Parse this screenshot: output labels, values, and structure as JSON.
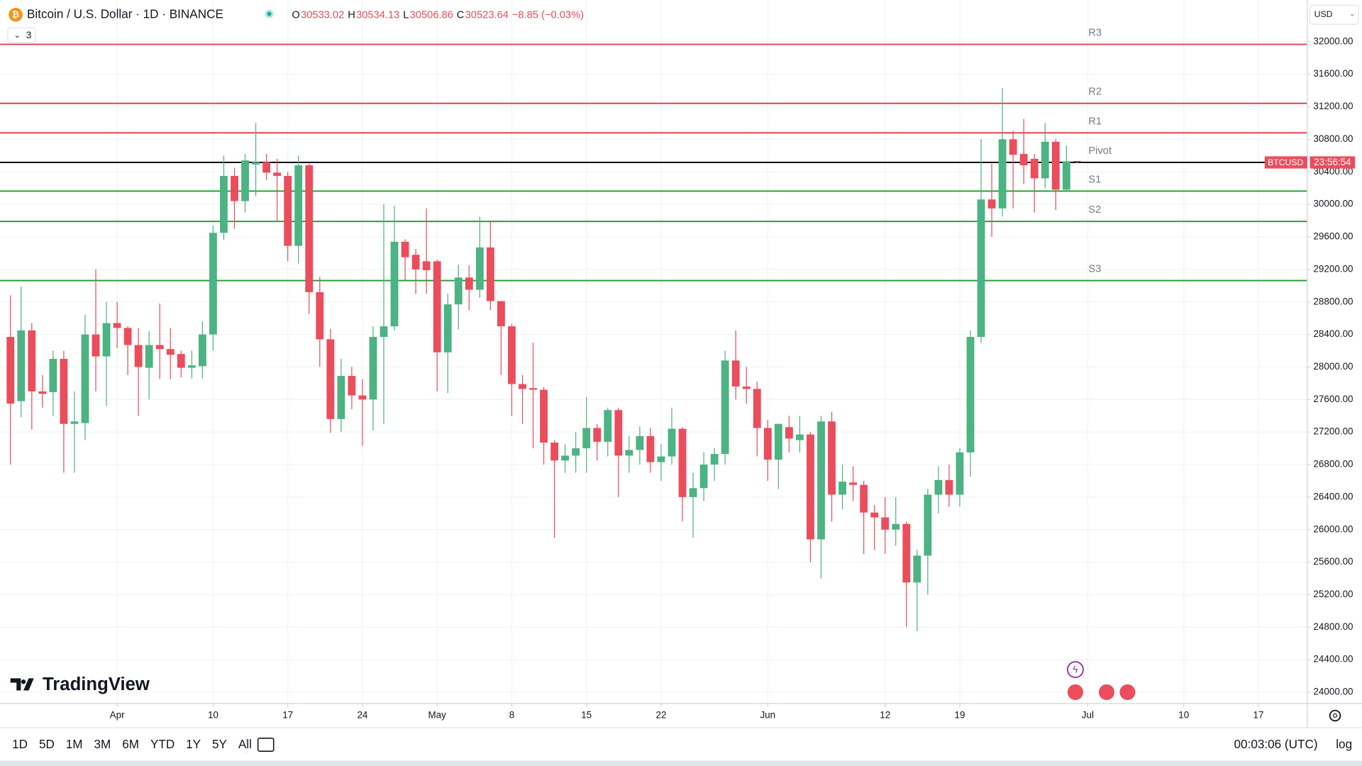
{
  "chart_data": {
    "type": "candlestick",
    "symbol": "Bitcoin / U.S. Dollar · 1D · BINANCE",
    "ohlc_letters": [
      "O",
      "H",
      "L",
      "C"
    ],
    "change": "−8.85 (−0.03%)",
    "indicator_count": "3",
    "currency": "USD",
    "ticker_tag": "BTCUSD",
    "countdown": "23:56:54",
    "logo": "TradingView",
    "timeframes": [
      "1D",
      "5D",
      "1M",
      "3M",
      "6M",
      "YTD",
      "1Y",
      "5Y",
      "All"
    ],
    "clock": "00:03:06 (UTC)",
    "scale_mode": "log",
    "up_color": "#4cb383",
    "down_color": "#eb4d5c",
    "open": [
      28370,
      27580,
      28450,
      27700,
      27690,
      28100,
      27300,
      27310,
      28400,
      28130,
      28540,
      28480,
      28270,
      27990,
      28270,
      28220,
      28160,
      27990,
      28010,
      28400,
      29650,
      30350,
      30040,
      30490,
      30520,
      30390,
      30350,
      29490,
      30480,
      28920,
      28340,
      27360,
      27890,
      27650,
      27600,
      28370,
      28500,
      29540,
      29380,
      29300,
      29300,
      28180,
      28770,
      29100,
      28950,
      29470,
      28810,
      28500,
      27790,
      27740,
      27720,
      27070,
      26850,
      26910,
      27000,
      27250,
      27080,
      27470,
      26910,
      26980,
      27150,
      26830,
      26900,
      27240,
      26400,
      26510,
      26800,
      26930,
      28080,
      27760,
      27730,
      27250,
      26860,
      27260,
      27100,
      27170,
      25880,
      27330,
      26430,
      26580,
      26550,
      26210,
      26150,
      26000,
      26070,
      25350,
      25680,
      26430,
      26610,
      26430,
      26950,
      28370,
      30060,
      29950,
      30800,
      30620,
      30560,
      30320,
      30770,
      30180,
      30533.02
    ],
    "high": [
      28880,
      28990,
      28540,
      27900,
      28200,
      28200,
      27700,
      28640,
      29200,
      28800,
      28800,
      28500,
      28480,
      28440,
      28780,
      28480,
      28200,
      28200,
      28560,
      29740,
      30600,
      30450,
      30620,
      31000,
      30620,
      30560,
      30400,
      30600,
      30500,
      29110,
      28470,
      28100,
      28000,
      27850,
      28500,
      30000,
      29980,
      29570,
      29450,
      29950,
      29320,
      28900,
      29260,
      29250,
      29850,
      29800,
      28810,
      28530,
      27900,
      28300,
      27750,
      27100,
      27050,
      27200,
      27630,
      27300,
      27500,
      27500,
      27150,
      27270,
      27250,
      27050,
      27500,
      27260,
      26700,
      26950,
      27000,
      28200,
      28450,
      28000,
      27820,
      27350,
      27300,
      27400,
      27400,
      27200,
      27400,
      27450,
      26800,
      26780,
      26600,
      26300,
      26400,
      26400,
      26100,
      25750,
      26500,
      26780,
      26800,
      27000,
      28450,
      30800,
      30500,
      31430,
      30900,
      31050,
      30620,
      31000,
      30800,
      30720,
      30534.13
    ],
    "low": [
      26800,
      27380,
      27230,
      27500,
      27400,
      26700,
      26700,
      27100,
      27700,
      27520,
      28230,
      27900,
      27400,
      27600,
      27850,
      27850,
      27870,
      27860,
      27860,
      28200,
      29560,
      29700,
      29900,
      30100,
      30300,
      29800,
      29300,
      29270,
      28650,
      28000,
      27190,
      27200,
      27480,
      27030,
      27220,
      27300,
      28450,
      29070,
      28900,
      28900,
      27700,
      27680,
      28460,
      28700,
      28850,
      28700,
      27900,
      27400,
      27300,
      27000,
      26800,
      25900,
      26700,
      26700,
      26700,
      26850,
      26900,
      26400,
      26700,
      26800,
      26700,
      26600,
      26800,
      26100,
      25900,
      26350,
      26600,
      26800,
      27600,
      27550,
      26900,
      26600,
      26500,
      26950,
      26950,
      25600,
      25400,
      26100,
      26250,
      26350,
      25700,
      25750,
      25700,
      25800,
      24800,
      24750,
      25200,
      26200,
      26280,
      26280,
      26650,
      28300,
      29600,
      29850,
      29950,
      30250,
      29900,
      30200,
      29930,
      30150,
      30506.86
    ],
    "close": [
      27550,
      28450,
      27700,
      27670,
      28100,
      27300,
      27330,
      28400,
      28130,
      28540,
      28480,
      28270,
      28000,
      28270,
      28220,
      28150,
      27990,
      28020,
      28400,
      29650,
      30350,
      30040,
      30540,
      30520,
      30390,
      30350,
      29490,
      30480,
      28920,
      28340,
      27360,
      27890,
      27650,
      27600,
      28370,
      28500,
      29540,
      29350,
      29200,
      29190,
      28180,
      28770,
      29100,
      28950,
      29470,
      28810,
      28500,
      27790,
      27730,
      27720,
      27070,
      26850,
      26910,
      27000,
      27250,
      27080,
      27470,
      26910,
      26980,
      27150,
      26830,
      26900,
      27240,
      26400,
      26510,
      26800,
      26930,
      28080,
      27760,
      27730,
      27250,
      26860,
      27300,
      27120,
      27170,
      25880,
      27330,
      26430,
      26590,
      26550,
      26210,
      26150,
      26000,
      26070,
      25350,
      25680,
      26430,
      26610,
      26430,
      26950,
      28370,
      30060,
      29950,
      30800,
      30610,
      30480,
      30320,
      30770,
      30180,
      30530,
      30523.64
    ],
    "levels": [
      {
        "name": "R3",
        "value": 31968,
        "color": "#e0364a"
      },
      {
        "name": "R2",
        "value": 31242,
        "color": "#e0364a"
      },
      {
        "name": "R1",
        "value": 30879,
        "color": "#e0364a"
      },
      {
        "name": "Pivot",
        "value": 30516,
        "color": "#000000"
      },
      {
        "name": "S1",
        "value": 30163,
        "color": "#1e9b2b"
      },
      {
        "name": "S2",
        "value": 29790,
        "color": "#1e9b2b"
      },
      {
        "name": "S3",
        "value": 29063,
        "color": "#1e9b2b"
      }
    ],
    "xlim": [
      -0.98,
      121.58
    ],
    "xticks": [
      {
        "value": 10,
        "label": "Apr"
      },
      {
        "value": 19,
        "label": "10"
      },
      {
        "value": 26,
        "label": "17"
      },
      {
        "value": 33,
        "label": "24"
      },
      {
        "value": 40,
        "label": "May"
      },
      {
        "value": 47,
        "label": "8"
      },
      {
        "value": 54,
        "label": "15"
      },
      {
        "value": 61,
        "label": "22"
      },
      {
        "value": 71,
        "label": "Jun"
      },
      {
        "value": 82,
        "label": "12"
      },
      {
        "value": 89,
        "label": "19"
      },
      {
        "value": 101,
        "label": "Jul"
      },
      {
        "value": 110,
        "label": "10"
      },
      {
        "value": 117,
        "label": "17"
      }
    ],
    "ylim": [
      23862,
      32513
    ],
    "yticks": [
      {
        "value": 24000,
        "label": "24000.00"
      },
      {
        "value": 24400,
        "label": "24400.00"
      },
      {
        "value": 24800,
        "label": "24800.00"
      },
      {
        "value": 25200,
        "label": "25200.00"
      },
      {
        "value": 25600,
        "label": "25600.00"
      },
      {
        "value": 26000,
        "label": "26000.00"
      },
      {
        "value": 26400,
        "label": "26400.00"
      },
      {
        "value": 26800,
        "label": "26800.00"
      },
      {
        "value": 27200,
        "label": "27200.00"
      },
      {
        "value": 27600,
        "label": "27600.00"
      },
      {
        "value": 28000,
        "label": "28000.00"
      },
      {
        "value": 28400,
        "label": "28400.00"
      },
      {
        "value": 28800,
        "label": "28800.00"
      },
      {
        "value": 29200,
        "label": "29200.00"
      },
      {
        "value": 29600,
        "label": "29600.00"
      },
      {
        "value": 30000,
        "label": "30000.00"
      },
      {
        "value": 30400,
        "label": "30400.00"
      },
      {
        "value": 30800,
        "label": "30800.00"
      },
      {
        "value": 31200,
        "label": "31200.00"
      },
      {
        "value": 31600,
        "label": "31600.00"
      },
      {
        "value": 32000,
        "label": "32000.00"
      }
    ],
    "grid": true
  }
}
